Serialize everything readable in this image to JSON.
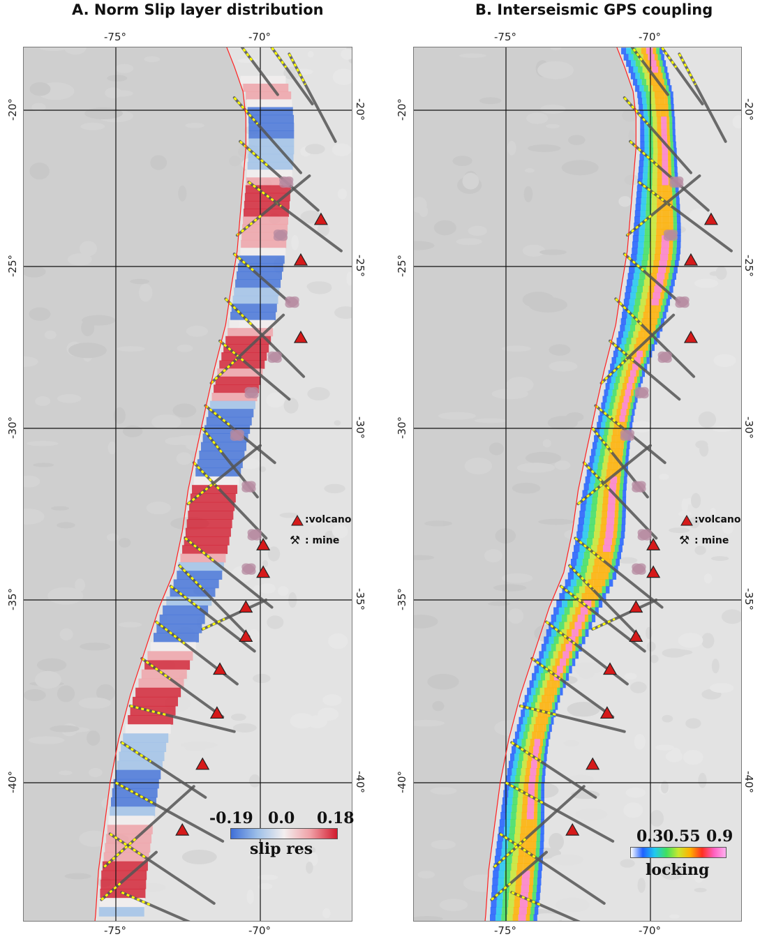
{
  "panels": [
    {
      "title": "A. Norm Slip layer distribution",
      "lon_ticks": [
        "-75°",
        "-70°"
      ],
      "lat_ticks": [
        "-20°",
        "-25°",
        "-30°",
        "-35°",
        "-40°"
      ],
      "legend": {
        "volcano": ":volcano",
        "mine": ": mine"
      },
      "colorbar": {
        "title": "slip res",
        "tick_labels": [
          "-0.19",
          "0.0",
          "0.18"
        ],
        "colors": [
          "#3f6fd8",
          "#9ec0e8",
          "#f3efef",
          "#f0a0a6",
          "#d21b2e"
        ]
      }
    },
    {
      "title": "B. Interseismic GPS coupling",
      "lon_ticks": [
        "-75°",
        "-70°"
      ],
      "lat_ticks": [
        "-20°",
        "-25°",
        "-30°",
        "-35°",
        "-40°"
      ],
      "legend": {
        "volcano": ":volcano",
        "mine": ": mine"
      },
      "colorbar": {
        "title": "locking",
        "tick_labels": [
          "0.3",
          "0.55",
          "0.9"
        ],
        "colors": [
          "#ffffff",
          "#2060ff",
          "#20c8f0",
          "#40e060",
          "#c8e830",
          "#ffb000",
          "#ff3020",
          "#ff60c0",
          "#ffb0f0"
        ]
      }
    }
  ],
  "map_extent": {
    "lon_min": -78,
    "lon_max": -66.8,
    "lat_min": -44.4,
    "lat_max": -17.9
  },
  "volcanoes": [
    [
      -67.9,
      -23.5
    ],
    [
      -68.6,
      -24.8
    ],
    [
      -68.6,
      -27.2
    ],
    [
      -69.9,
      -33.4
    ],
    [
      -69.9,
      -34.2
    ],
    [
      -70.5,
      -35.2
    ],
    [
      -70.5,
      -36.0
    ],
    [
      -71.4,
      -36.9
    ],
    [
      -71.5,
      -38.1
    ],
    [
      -72.0,
      -39.5
    ],
    [
      -72.7,
      -41.3
    ]
  ],
  "mines": [
    [
      -69.1,
      -22.3
    ],
    [
      -69.3,
      -24.0
    ],
    [
      -68.9,
      -26.1
    ],
    [
      -69.5,
      -27.8
    ],
    [
      -70.3,
      -28.9
    ],
    [
      -70.8,
      -30.2
    ],
    [
      -70.4,
      -31.7
    ],
    [
      -70.2,
      -33.1
    ],
    [
      -70.4,
      -34.1
    ]
  ],
  "colors": {
    "land": "#e3e3e3",
    "ocean": "#cfcfcf",
    "trench": "#ff2020",
    "grid": "#111111",
    "faults": "#555555",
    "fault_dash": "#ffff00",
    "volcano_fill": "#d61a1a",
    "mine_fill": "#b58aa0"
  }
}
